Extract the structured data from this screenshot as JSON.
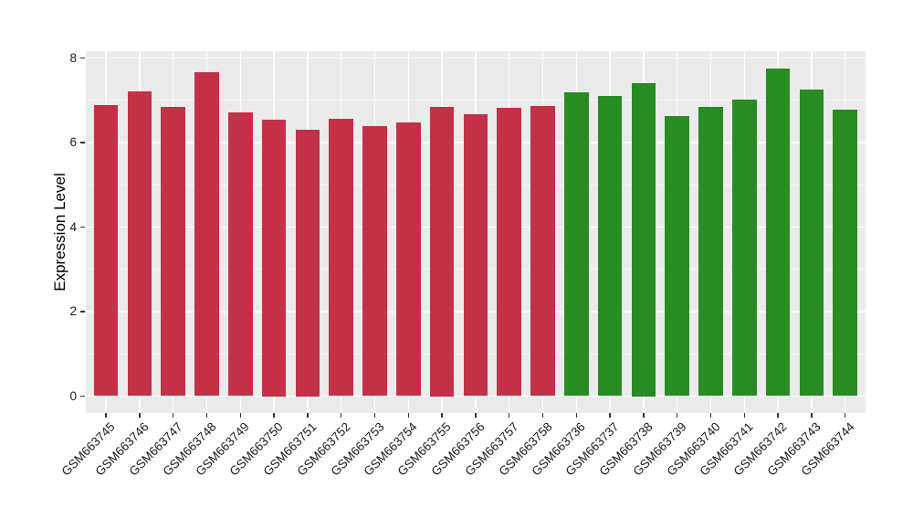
{
  "figure": {
    "background": "#FFFFFF",
    "panel_background": "#EBEBEB",
    "gridline_color": "#FFFFFF"
  },
  "chart_data": {
    "type": "bar",
    "title": "",
    "xlabel": "",
    "ylabel": "Expression Level",
    "ylim": [
      -0.4,
      8.16
    ],
    "yticks": [
      0,
      2,
      4,
      6,
      8
    ],
    "yticks_minor": [
      1,
      3,
      5,
      7
    ],
    "grid": "on",
    "legend_position": "none",
    "categories": [
      "GSM663745",
      "GSM663746",
      "GSM663747",
      "GSM663748",
      "GSM663749",
      "GSM663750",
      "GSM663751",
      "GSM663752",
      "GSM663753",
      "GSM663754",
      "GSM663755",
      "GSM663756",
      "GSM663757",
      "GSM663758",
      "GSM663736",
      "GSM663737",
      "GSM663738",
      "GSM663739",
      "GSM663740",
      "GSM663741",
      "GSM663742",
      "GSM663743",
      "GSM663744"
    ],
    "values": [
      6.89,
      7.21,
      6.84,
      7.66,
      6.71,
      6.55,
      6.3,
      6.57,
      6.38,
      6.48,
      6.85,
      6.68,
      6.83,
      6.86,
      7.18,
      7.11,
      7.4,
      6.63,
      6.84,
      7.02,
      7.76,
      7.26,
      6.77
    ],
    "groups": [
      "red",
      "red",
      "red",
      "red",
      "red",
      "red",
      "red",
      "red",
      "red",
      "red",
      "red",
      "red",
      "red",
      "red",
      "green",
      "green",
      "green",
      "green",
      "green",
      "green",
      "green",
      "green",
      "green"
    ],
    "group_colors": {
      "red": "#C33149",
      "green": "#288C23"
    }
  }
}
